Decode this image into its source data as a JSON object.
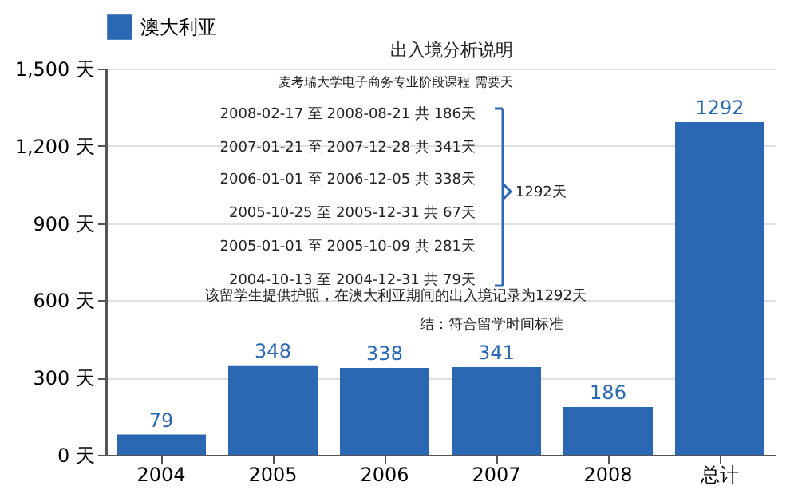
{
  "chart_data": {
    "type": "bar",
    "title": "出入境分析说明",
    "subtitle": "麦考瑞大学电子商务专业阶段课程 需要天",
    "categories": [
      "2004",
      "2005",
      "2006",
      "2007",
      "2008",
      "总计"
    ],
    "series": [
      {
        "name": "澳大利亚",
        "color": "#2a68b4",
        "values": [
          79,
          348,
          338,
          341,
          186,
          1292
        ]
      }
    ],
    "ylim": [
      0,
      1500
    ],
    "yticks": [
      {
        "value": 0,
        "label": "0 天"
      },
      {
        "value": 300,
        "label": "300 天"
      },
      {
        "value": 600,
        "label": "600 天"
      },
      {
        "value": 900,
        "label": "900 天"
      },
      {
        "value": 1200,
        "label": "1,200 天"
      },
      {
        "value": 1500,
        "label": "1,500 天"
      }
    ],
    "grid": "y",
    "legend": "top",
    "data_labels": true,
    "annotations": [
      "2008-02-17 至 2008-08-21 共 186天",
      "2007-01-21 至 2007-12-28 共 341天",
      "2006-01-01 至 2006-12-05 共 338天",
      "2005-10-25 至 2005-12-31 共 67天",
      "2005-01-01 至 2005-10-09 共 281天",
      "2004-10-13 至 2004-12-31 共 79天",
      "1292天",
      "该留学生提供护照，在澳大利亚期间的出入境记录为1292天",
      "结：符合留学时间标准"
    ]
  }
}
